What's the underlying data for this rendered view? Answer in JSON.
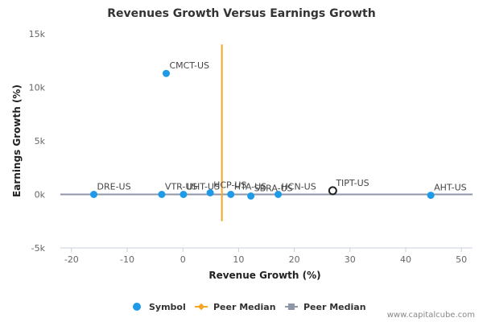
{
  "chart_data": {
    "type": "scatter",
    "title": "Revenues Growth Versus Earnings Growth",
    "xlabel": "Revenue Growth (%)",
    "ylabel": "Earnings Growth (%)",
    "xlim": [
      -22,
      52
    ],
    "ylim": [
      -5000,
      15000
    ],
    "x_ticks": [
      -20,
      -10,
      0,
      10,
      20,
      30,
      40,
      50
    ],
    "y_ticks": [
      {
        "value": -5000,
        "label": "-5k"
      },
      {
        "value": 0,
        "label": "0k"
      },
      {
        "value": 5000,
        "label": "5k"
      },
      {
        "value": 10000,
        "label": "10k"
      },
      {
        "value": 15000,
        "label": "15k"
      }
    ],
    "points": [
      {
        "label": "CMCT-US",
        "x": -3.0,
        "y": 11300,
        "highlight": false
      },
      {
        "label": "DRE-US",
        "x": -16.0,
        "y": 0,
        "highlight": false
      },
      {
        "label": "VTR-US",
        "x": -3.8,
        "y": 0,
        "highlight": false
      },
      {
        "label": "UHT-US",
        "x": 0.1,
        "y": 0,
        "highlight": false
      },
      {
        "label": "HCP-US",
        "x": 4.9,
        "y": 150,
        "highlight": false
      },
      {
        "label": "HTA-US",
        "x": 8.6,
        "y": 0,
        "highlight": false
      },
      {
        "label": "SBRA-US",
        "x": 12.2,
        "y": -150,
        "highlight": false
      },
      {
        "label": "HCN-US",
        "x": 17.1,
        "y": 0,
        "highlight": false
      },
      {
        "label": "TIPT-US",
        "x": 26.9,
        "y": 350,
        "highlight": true
      },
      {
        "label": "AHT-US",
        "x": 44.5,
        "y": -80,
        "highlight": false
      }
    ],
    "peer_median_revenue_growth": 7.0,
    "peer_median_vertical_range": [
      -2500,
      14000
    ],
    "peer_median_earnings_growth": 0,
    "legend": [
      {
        "name": "Symbol",
        "marker": "circle",
        "color": "#1f9ae8"
      },
      {
        "name": "Peer Median",
        "marker": "diamond-line",
        "color": "#f5a623"
      },
      {
        "name": "Peer Median",
        "marker": "square-line",
        "color": "#8f96a8"
      }
    ],
    "legend_position": "bottom",
    "grid": false
  },
  "colors": {
    "symbol": "#1f9ae8",
    "peer_median_vertical": "#f5a623",
    "peer_median_horizontal": "#8f96a8",
    "highlight_stroke": "#222222"
  },
  "credit": "www.capitalcube.com"
}
